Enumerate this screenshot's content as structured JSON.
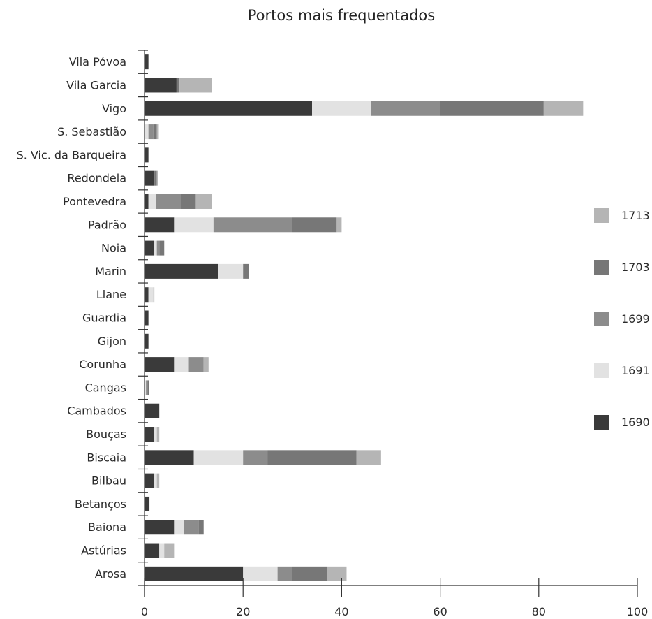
{
  "chart_data": {
    "type": "bar",
    "orientation": "horizontal",
    "stacked": true,
    "title": "Portos mais frequentados",
    "xlabel": "",
    "ylabel": "",
    "xlim": [
      0,
      100
    ],
    "xticks": [
      0,
      20,
      40,
      60,
      80,
      100
    ],
    "grid": false,
    "legend_position": "right",
    "categories": [
      "Vila Póvoa",
      "Vila Garcia",
      "Vigo",
      "S. Sebastião",
      "S. Vic. da Barqueira",
      "Redondela",
      "Pontevedra",
      "Padrão",
      "Noia",
      "Marin",
      "Llane",
      "Guardia",
      "Gijon",
      "Corunha",
      "Cangas",
      "Cambados",
      "Bouças",
      "Biscaia",
      "Bilbau",
      "Betanços",
      "Baiona",
      "Astúrias",
      "Arosa"
    ],
    "series": [
      {
        "name": "1690",
        "color": "#3a3a3a",
        "values": [
          0.8,
          6.5,
          34,
          0,
          0.8,
          2,
          0.8,
          6,
          2,
          15,
          0.8,
          0.8,
          0.8,
          6,
          0,
          3,
          2,
          10,
          2,
          1,
          6,
          3,
          20
        ]
      },
      {
        "name": "1691",
        "color": "#e2e2e2",
        "values": [
          0,
          0,
          12,
          0.8,
          0,
          0,
          1.6,
          8,
          0.5,
          5,
          1,
          0,
          0,
          3,
          0.3,
          0,
          0.5,
          10,
          0.5,
          0,
          2,
          1,
          7
        ]
      },
      {
        "name": "1699",
        "color": "#8c8c8c",
        "values": [
          0,
          0,
          14,
          1,
          0,
          0,
          5,
          16,
          0.5,
          0,
          0,
          0,
          0,
          3,
          0.3,
          0,
          0,
          5,
          0,
          0,
          3,
          0,
          3
        ]
      },
      {
        "name": "1703",
        "color": "#777777",
        "values": [
          0,
          0.6,
          21,
          0.7,
          0,
          0.5,
          3,
          9,
          1,
          1.2,
          0,
          0,
          0,
          0,
          0.3,
          0,
          0,
          18,
          0,
          0,
          1,
          0,
          7
        ]
      },
      {
        "name": "1713",
        "color": "#b5b5b5",
        "values": [
          0,
          6.5,
          8,
          0.4,
          0,
          0.3,
          3.2,
          1,
          0,
          0,
          0.2,
          0,
          0,
          1,
          0,
          0,
          0.5,
          5,
          0.5,
          0,
          0,
          2,
          4
        ]
      }
    ]
  },
  "legend": {
    "order": [
      "1713",
      "1703",
      "1699",
      "1691",
      "1690"
    ]
  }
}
